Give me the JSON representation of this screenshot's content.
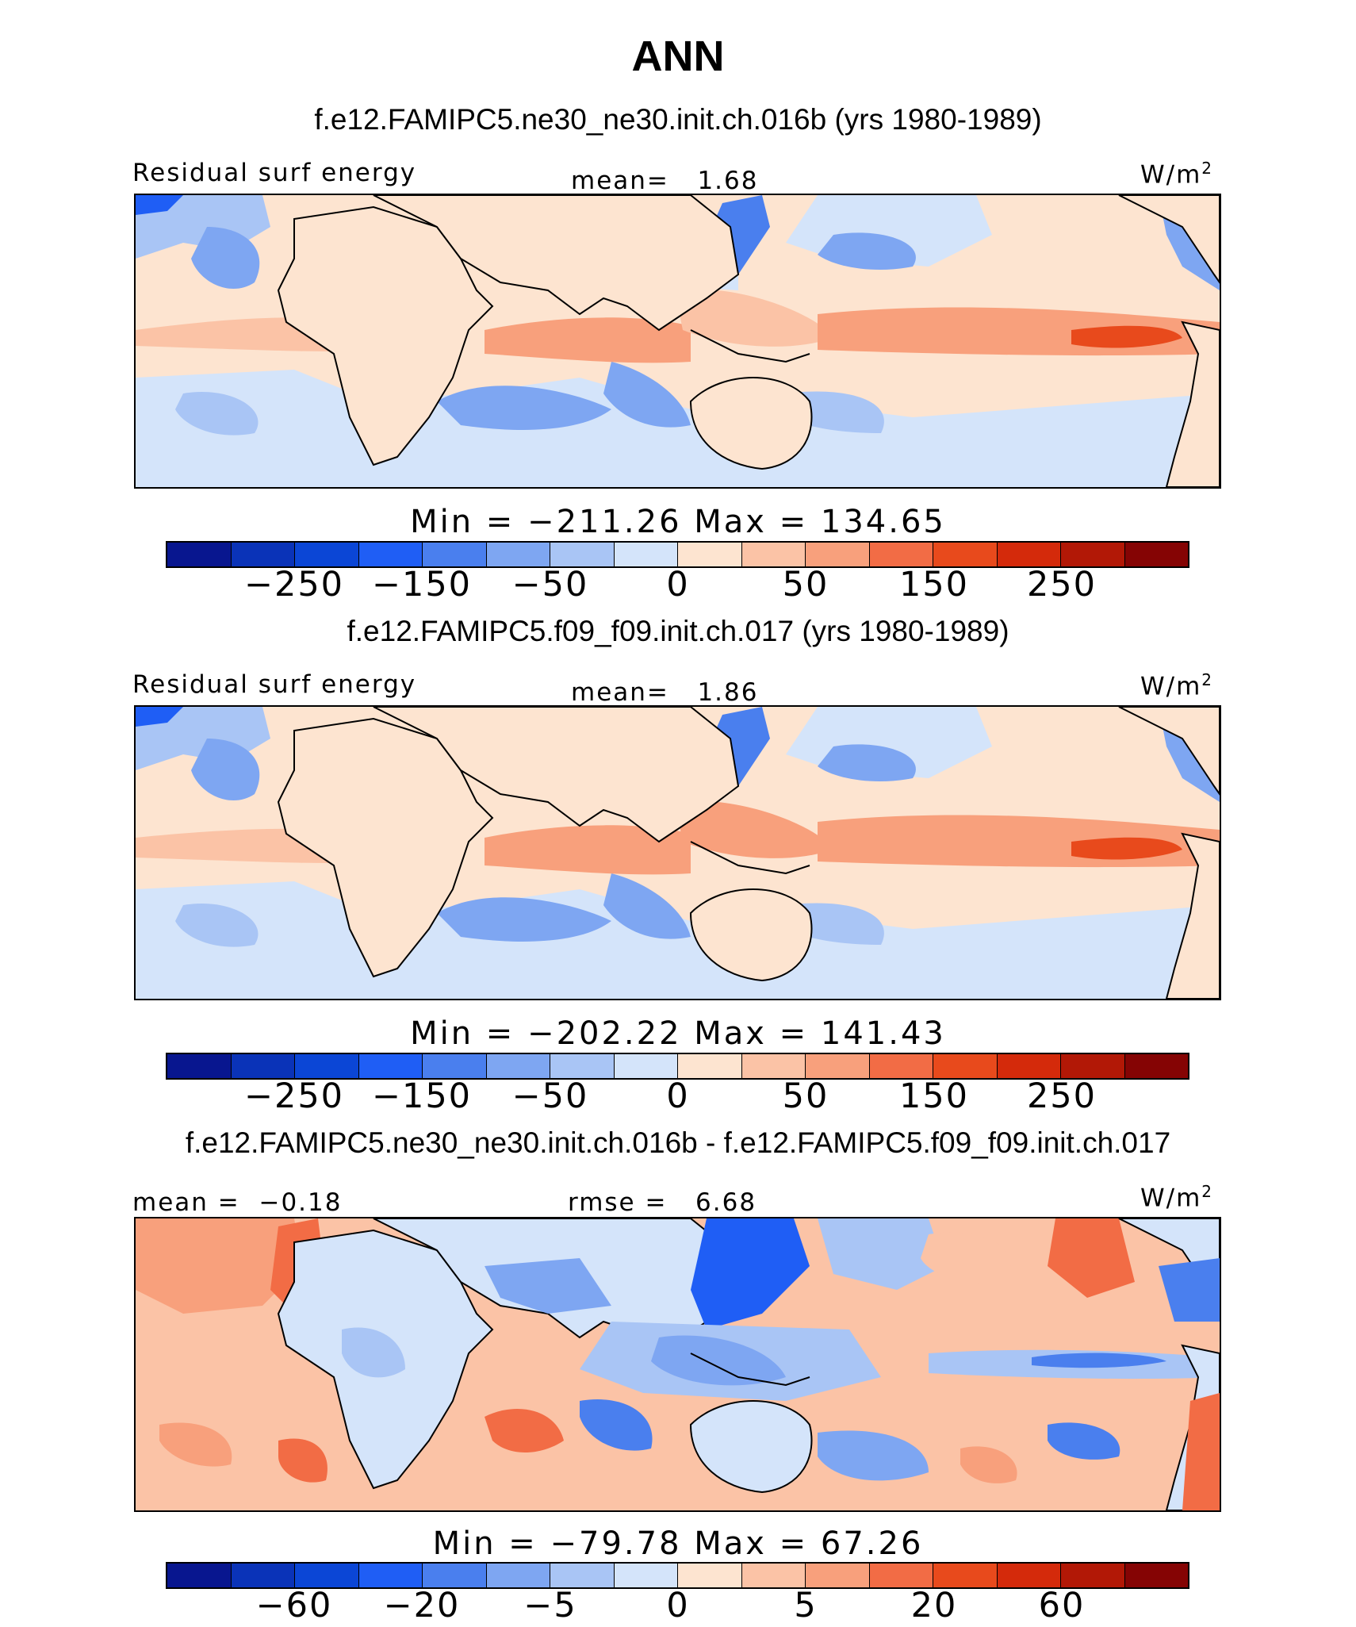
{
  "figure": {
    "season": "ANN",
    "variable_label": "Residual surf energy",
    "units_text": "W/m",
    "units_exp": "2"
  },
  "panels": [
    {
      "title": "f.e12.FAMIPC5.ne30_ne30.init.ch.016b (yrs 1980-1989)",
      "left_label": "Residual surf energy",
      "stat_label": "mean=",
      "stat_value": "1.68",
      "min_label": "Min =",
      "min_value": "−211.26",
      "max_label": "Max =",
      "max_value": "134.65",
      "colorbar_ticks": [
        "−250",
        "−150",
        "−50",
        "0",
        "50",
        "150",
        "250"
      ]
    },
    {
      "title": "f.e12.FAMIPC5.f09_f09.init.ch.017 (yrs 1980-1989)",
      "left_label": "Residual surf energy",
      "stat_label": "mean=",
      "stat_value": "1.86",
      "min_label": "Min =",
      "min_value": "−202.22",
      "max_label": "Max =",
      "max_value": "141.43",
      "colorbar_ticks": [
        "−250",
        "−150",
        "−50",
        "0",
        "50",
        "150",
        "250"
      ]
    },
    {
      "title": "f.e12.FAMIPC5.ne30_ne30.init.ch.016b - f.e12.FAMIPC5.f09_f09.init.ch.017",
      "left_label": "mean =",
      "left_value": "−0.18",
      "stat_label": "rmse =",
      "stat_value": "6.68",
      "min_label": "Min =",
      "min_value": "−79.78",
      "max_label": "Max =",
      "max_value": "67.26",
      "colorbar_ticks": [
        "−60",
        "−20",
        "−5",
        "0",
        "5",
        "20",
        "60"
      ]
    }
  ],
  "colors": {
    "palette": [
      "#08168f",
      "#0a33b8",
      "#0b46d6",
      "#1f5ef5",
      "#4a7fee",
      "#7ea6f2",
      "#a9c5f5",
      "#d4e4fa",
      "#fde4d0",
      "#fbc3a6",
      "#f8a07c",
      "#f26c45",
      "#e84a1c",
      "#d42a0b",
      "#b21806",
      "#850404"
    ]
  }
}
